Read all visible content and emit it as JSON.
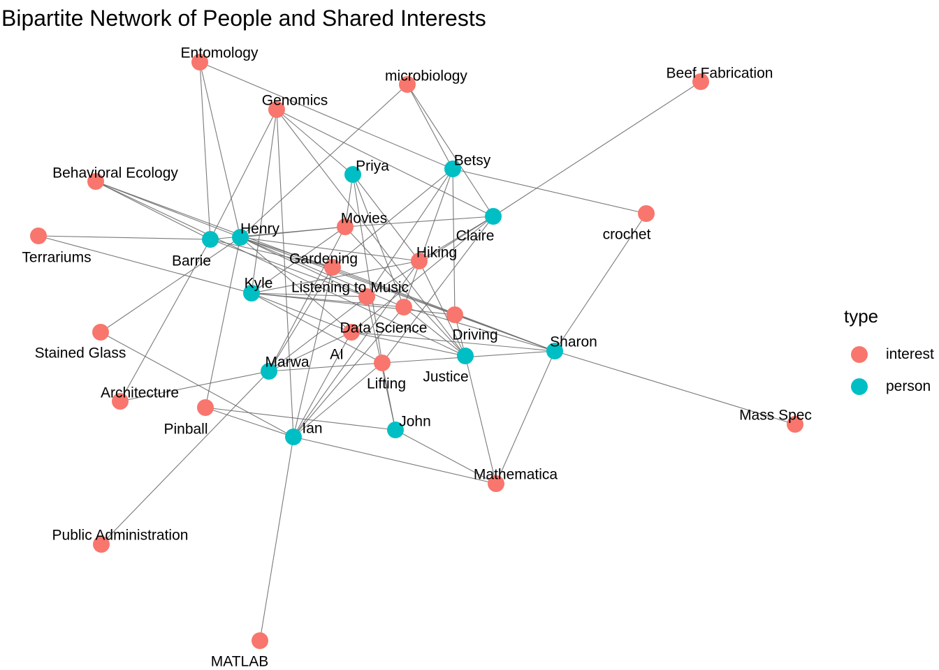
{
  "title": "Bipartite Network of People and Shared Interests",
  "legend": {
    "title": "type",
    "items": [
      {
        "label": "interest",
        "color": "#F8766D"
      },
      {
        "label": "person",
        "color": "#00BFC4"
      }
    ]
  },
  "nodes": [
    {
      "id": "Entomology",
      "label": "Entomology",
      "type": "interest"
    },
    {
      "id": "microbiology",
      "label": "microbiology",
      "type": "interest"
    },
    {
      "id": "Beef Fabrication",
      "label": "Beef Fabrication",
      "type": "interest"
    },
    {
      "id": "Genomics",
      "label": "Genomics",
      "type": "interest"
    },
    {
      "id": "Priya",
      "label": "Priya",
      "type": "person"
    },
    {
      "id": "Betsy",
      "label": "Betsy",
      "type": "person"
    },
    {
      "id": "Behavioral Ecology",
      "label": "Behavioral Ecology",
      "type": "interest"
    },
    {
      "id": "crochet",
      "label": "crochet",
      "type": "interest"
    },
    {
      "id": "Claire",
      "label": "Claire",
      "type": "person"
    },
    {
      "id": "Movies",
      "label": "Movies",
      "type": "interest"
    },
    {
      "id": "Henry",
      "label": "Henry",
      "type": "person"
    },
    {
      "id": "Terrariums",
      "label": "Terrariums",
      "type": "interest"
    },
    {
      "id": "Barrie",
      "label": "Barrie",
      "type": "person"
    },
    {
      "id": "Gardening",
      "label": "Gardening",
      "type": "interest"
    },
    {
      "id": "Hiking",
      "label": "Hiking",
      "type": "interest"
    },
    {
      "id": "Kyle",
      "label": "Kyle",
      "type": "person"
    },
    {
      "id": "Listening to Music",
      "label": "Listening to Music",
      "type": "interest"
    },
    {
      "id": "Data Science",
      "label": "Data Science",
      "type": "interest"
    },
    {
      "id": "Driving",
      "label": "Driving",
      "type": "interest"
    },
    {
      "id": "AI",
      "label": "AI",
      "type": "interest"
    },
    {
      "id": "Stained Glass",
      "label": "Stained Glass",
      "type": "interest"
    },
    {
      "id": "Sharon",
      "label": "Sharon",
      "type": "person"
    },
    {
      "id": "Marwa",
      "label": "Marwa",
      "type": "person"
    },
    {
      "id": "Justice",
      "label": "Justice",
      "type": "person"
    },
    {
      "id": "Lifting",
      "label": "Lifting",
      "type": "interest"
    },
    {
      "id": "Architecture",
      "label": "Architecture",
      "type": "interest"
    },
    {
      "id": "Pinball",
      "label": "Pinball",
      "type": "interest"
    },
    {
      "id": "Ian",
      "label": "Ian",
      "type": "person"
    },
    {
      "id": "John",
      "label": "John",
      "type": "person"
    },
    {
      "id": "Mass Spec",
      "label": "Mass Spec",
      "type": "interest"
    },
    {
      "id": "Mathematica",
      "label": "Mathematica",
      "type": "interest"
    },
    {
      "id": "Public Administration",
      "label": "Public Administration",
      "type": "interest"
    },
    {
      "id": "MATLAB",
      "label": "MATLAB",
      "type": "interest"
    }
  ],
  "edges": [
    [
      "Henry",
      "Entomology"
    ],
    [
      "Barrie",
      "Entomology"
    ],
    [
      "Entomology",
      "Betsy"
    ],
    [
      "Henry",
      "microbiology"
    ],
    [
      "Betsy",
      "microbiology"
    ],
    [
      "Claire",
      "microbiology"
    ],
    [
      "Claire",
      "Beef Fabrication"
    ],
    [
      "Priya",
      "Genomics"
    ],
    [
      "Claire",
      "Genomics"
    ],
    [
      "Ian",
      "Genomics"
    ],
    [
      "Kyle",
      "Genomics"
    ],
    [
      "Justice",
      "Genomics"
    ],
    [
      "Barrie",
      "Genomics"
    ],
    [
      "Henry",
      "Behavioral Ecology"
    ],
    [
      "Barrie",
      "Behavioral Ecology"
    ],
    [
      "Justice",
      "Behavioral Ecology"
    ],
    [
      "Sharon",
      "Behavioral Ecology"
    ],
    [
      "Betsy",
      "crochet"
    ],
    [
      "Sharon",
      "crochet"
    ],
    [
      "Barrie",
      "Terrariums"
    ],
    [
      "Kyle",
      "Terrariums"
    ],
    [
      "Henry",
      "Movies"
    ],
    [
      "Kyle",
      "Movies"
    ],
    [
      "Marwa",
      "Movies"
    ],
    [
      "Justice",
      "Movies"
    ],
    [
      "Claire",
      "Movies"
    ],
    [
      "Priya",
      "Movies"
    ],
    [
      "Barrie",
      "Movies"
    ],
    [
      "Henry",
      "Gardening"
    ],
    [
      "Barrie",
      "Gardening"
    ],
    [
      "Marwa",
      "Gardening"
    ],
    [
      "Betsy",
      "Gardening"
    ],
    [
      "Ian",
      "Gardening"
    ],
    [
      "Sharon",
      "Gardening"
    ],
    [
      "Henry",
      "Hiking"
    ],
    [
      "Kyle",
      "Hiking"
    ],
    [
      "Claire",
      "Hiking"
    ],
    [
      "Ian",
      "Hiking"
    ],
    [
      "Justice",
      "Hiking"
    ],
    [
      "Priya",
      "Hiking"
    ],
    [
      "Henry",
      "Listening to Music"
    ],
    [
      "Kyle",
      "Listening to Music"
    ],
    [
      "Betsy",
      "Listening to Music"
    ],
    [
      "Marwa",
      "Listening to Music"
    ],
    [
      "John",
      "Listening to Music"
    ],
    [
      "Claire",
      "Listening to Music"
    ],
    [
      "Barrie",
      "Listening to Music"
    ],
    [
      "Henry",
      "Data Science"
    ],
    [
      "Kyle",
      "Data Science"
    ],
    [
      "Justice",
      "Data Science"
    ],
    [
      "Sharon",
      "Data Science"
    ],
    [
      "Priya",
      "Data Science"
    ],
    [
      "Betsy",
      "Data Science"
    ],
    [
      "Ian",
      "Data Science"
    ],
    [
      "Henry",
      "Driving"
    ],
    [
      "Kyle",
      "Driving"
    ],
    [
      "Sharon",
      "Driving"
    ],
    [
      "Betsy",
      "Driving"
    ],
    [
      "Justice",
      "Driving"
    ],
    [
      "Henry",
      "AI"
    ],
    [
      "Kyle",
      "AI"
    ],
    [
      "Justice",
      "AI"
    ],
    [
      "Marwa",
      "AI"
    ],
    [
      "Claire",
      "AI"
    ],
    [
      "Sharon",
      "AI"
    ],
    [
      "Ian",
      "AI"
    ],
    [
      "Henry",
      "Stained Glass"
    ],
    [
      "Ian",
      "Stained Glass"
    ],
    [
      "Sharon",
      "Mass Spec"
    ],
    [
      "Kyle",
      "Lifting"
    ],
    [
      "Claire",
      "Lifting"
    ],
    [
      "John",
      "Lifting"
    ],
    [
      "Priya",
      "Lifting"
    ],
    [
      "Marwa",
      "Lifting"
    ],
    [
      "Sharon",
      "Lifting"
    ],
    [
      "Ian",
      "Lifting"
    ],
    [
      "Marwa",
      "Architecture"
    ],
    [
      "Barrie",
      "Architecture"
    ],
    [
      "Henry",
      "Pinball"
    ],
    [
      "Ian",
      "Pinball"
    ],
    [
      "John",
      "Pinball"
    ],
    [
      "Ian",
      "Mathematica"
    ],
    [
      "John",
      "Mathematica"
    ],
    [
      "Justice",
      "Mathematica"
    ],
    [
      "Sharon",
      "Mathematica"
    ],
    [
      "Marwa",
      "Public Administration"
    ],
    [
      "Ian",
      "MATLAB"
    ]
  ]
}
